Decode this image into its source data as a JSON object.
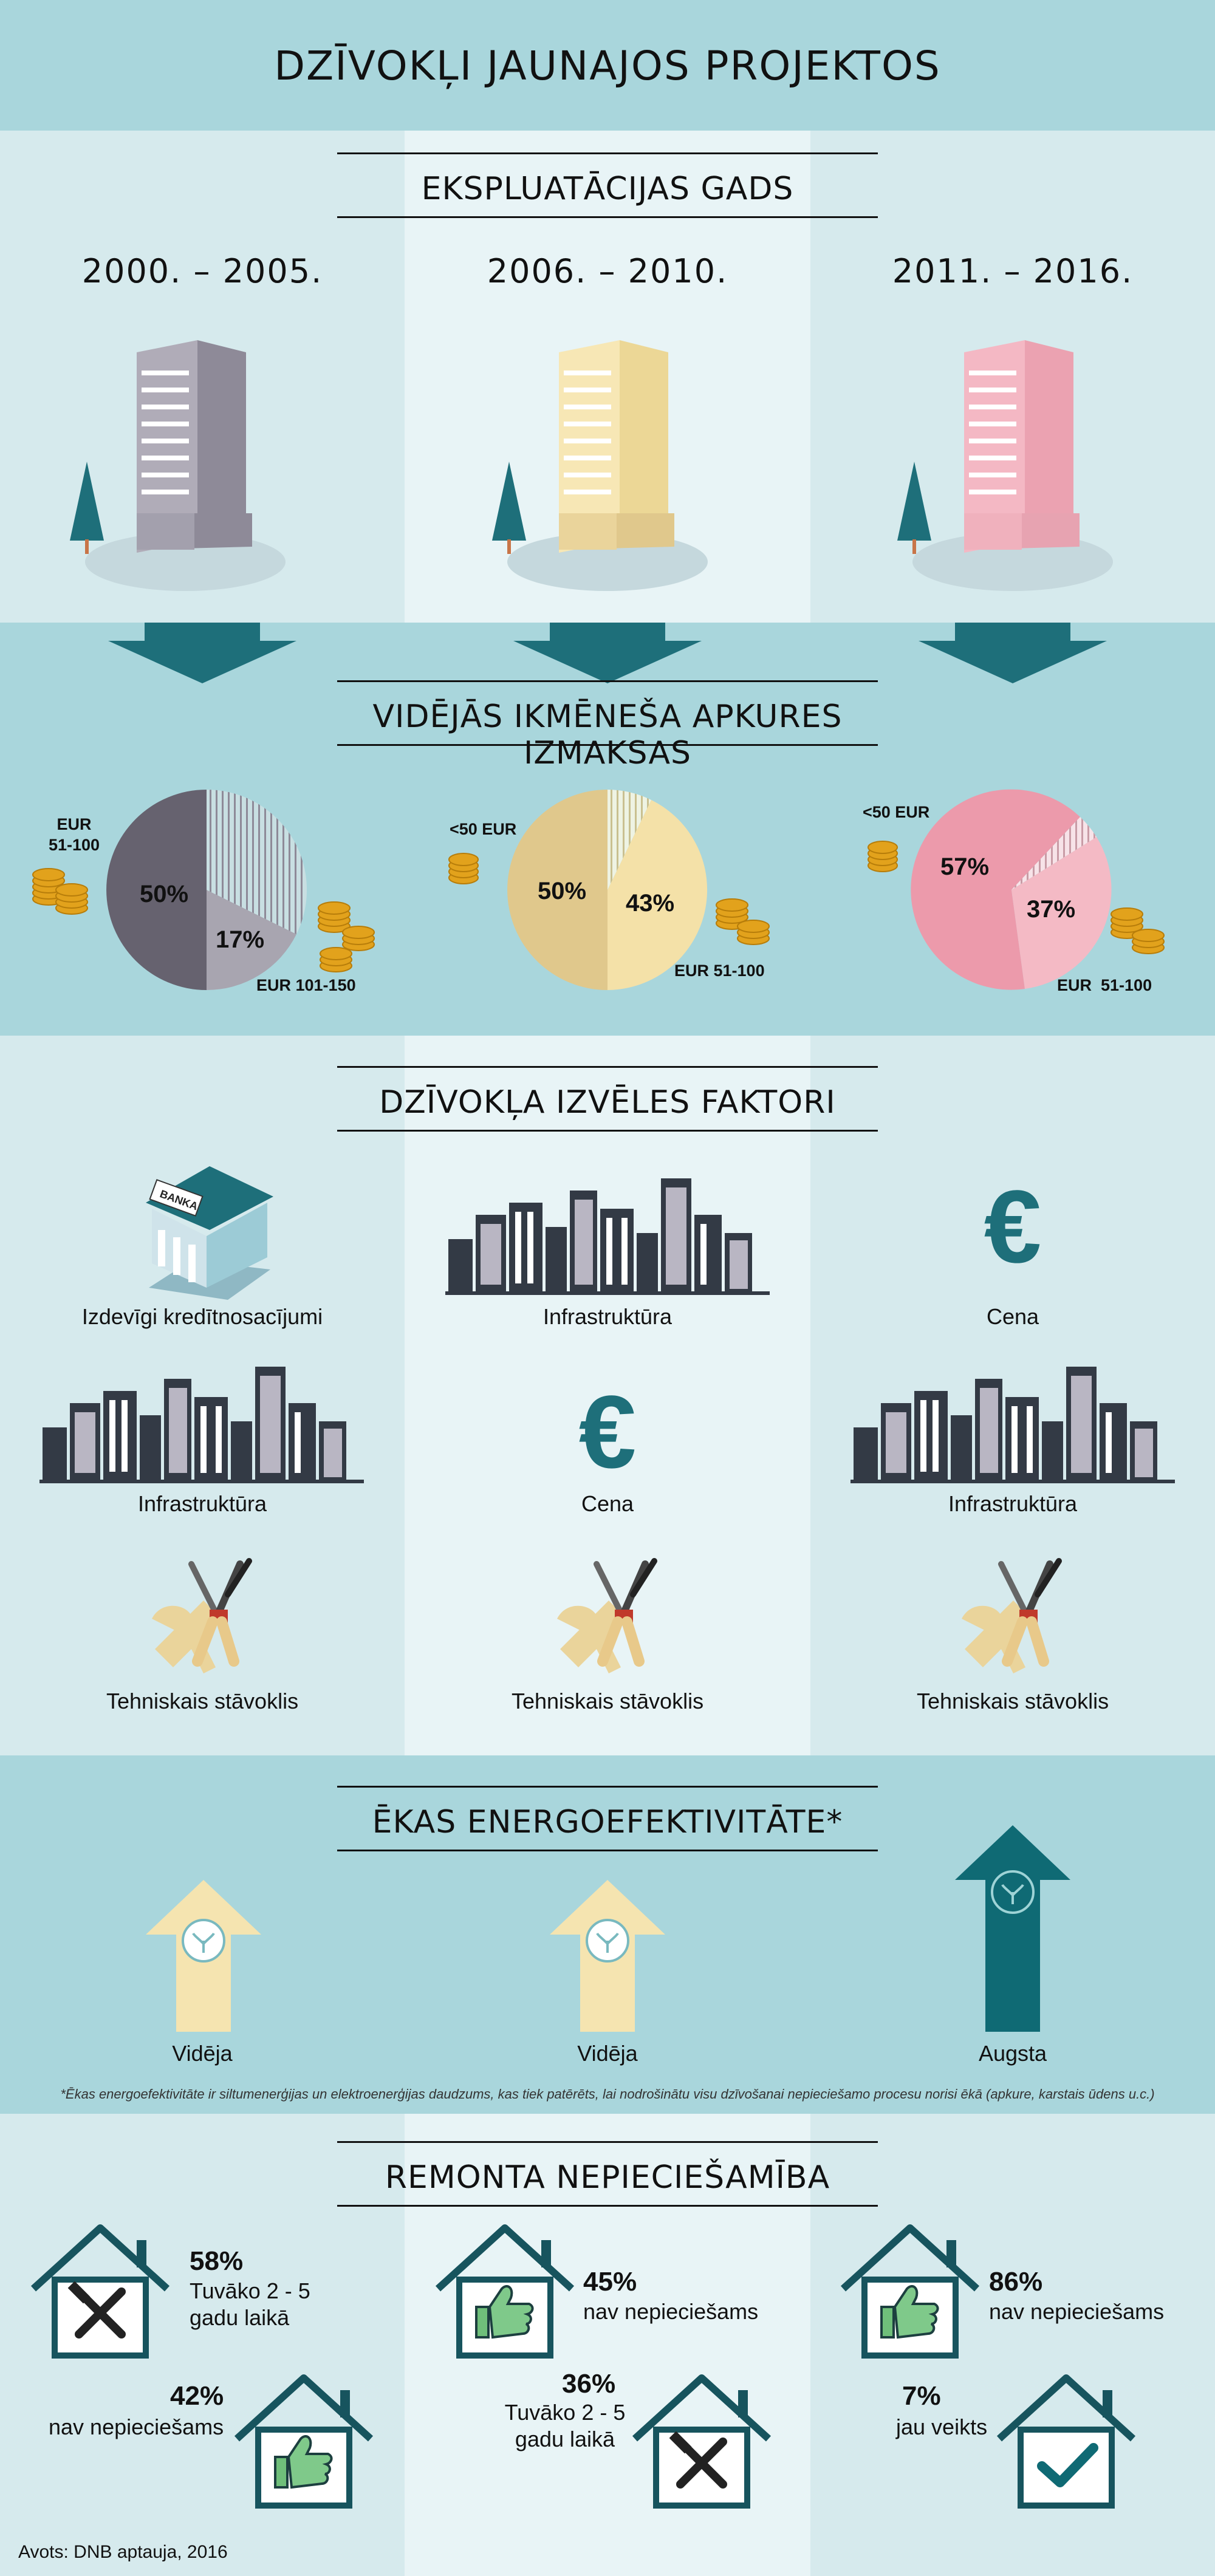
{
  "title": "DZĪVOKĻI JAUNAJOS PROJEKTOS",
  "colors": {
    "gray": "#8e8a98",
    "cream": "#f2dfa6",
    "pink": "#efa8b6",
    "teal": "#1e6f7a",
    "light": "#d6eaed",
    "mid": "#a9d6dc"
  },
  "sections": {
    "year": {
      "heading": "EKSPLUATĀCIJAS GADS",
      "periods": [
        "2000. – 2005.",
        "2006. – 2010.",
        "2011. – 2016."
      ]
    },
    "heating": {
      "heading": "VIDĒJĀS IKMĒNEŠA APKURES IZMAKSAS",
      "charts": [
        {
          "small_label_left": "EUR\n51-100",
          "big_label": "EUR 101-150",
          "big_pct": "50%",
          "small_pct": "17%"
        },
        {
          "small_label_left": "<50 EUR",
          "big_label": "EUR 51-100",
          "left_pct": "50%",
          "right_pct": "43%"
        },
        {
          "small_label_left": "<50 EUR",
          "big_label": "EUR  51-100",
          "left_pct": "57%",
          "right_pct": "37%"
        }
      ]
    },
    "factors": {
      "heading": "DZĪVOKĻA IZVĒLES FAKTORI",
      "grid": [
        [
          "Izdevīgi kredītnosacījumi",
          "Infrastruktūra",
          "Cena"
        ],
        [
          "Infrastruktūra",
          "Cena",
          "Infrastruktūra"
        ],
        [
          "Tehniskais stāvoklis",
          "Tehniskais stāvoklis",
          "Tehniskais stāvoklis"
        ]
      ],
      "bank_sign": "BANKA"
    },
    "energy": {
      "heading": "ĒKAS ENERGOEFEKTIVITĀTE*",
      "levels": [
        "Vidēja",
        "Vidēja",
        "Augsta"
      ],
      "footnote": "*Ēkas energoefektivitāte ir siltumenerģijas un elektroenerģijas daudzums, kas tiek patērēts, lai nodrošinātu visu dzīvošanai nepieciešamo procesu norisi ēkā (apkure, karstais ūdens u.c.)"
    },
    "repair": {
      "heading": "REMONTA NEPIECIEŠAMĪBA",
      "top": [
        {
          "pct": "58%",
          "text": "Tuvāko 2 - 5\ngadu laikā"
        },
        {
          "pct": "45%",
          "text": "nav nepieciešams"
        },
        {
          "pct": "86%",
          "text": "nav nepieciešams"
        }
      ],
      "bottom": [
        {
          "pct": "42%",
          "text": "nav nepieciešams"
        },
        {
          "pct": "36%",
          "text": "Tuvāko 2 - 5\ngadu laikā"
        },
        {
          "pct": "7%",
          "text": "jau veikts"
        }
      ]
    }
  },
  "source": "Avots: DNB aptauja, 2016"
}
